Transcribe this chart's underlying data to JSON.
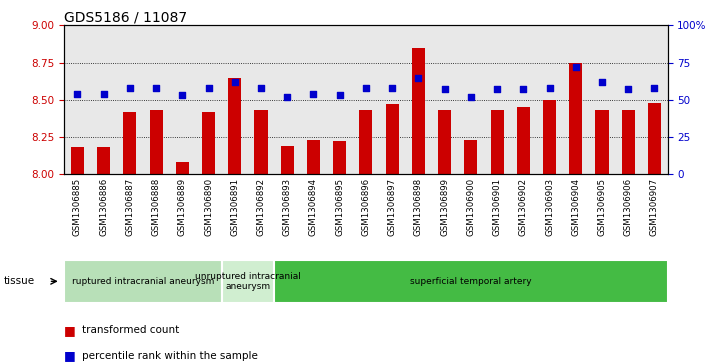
{
  "title": "GDS5186 / 11087",
  "samples": [
    "GSM1306885",
    "GSM1306886",
    "GSM1306887",
    "GSM1306888",
    "GSM1306889",
    "GSM1306890",
    "GSM1306891",
    "GSM1306892",
    "GSM1306893",
    "GSM1306894",
    "GSM1306895",
    "GSM1306896",
    "GSM1306897",
    "GSM1306898",
    "GSM1306899",
    "GSM1306900",
    "GSM1306901",
    "GSM1306902",
    "GSM1306903",
    "GSM1306904",
    "GSM1306905",
    "GSM1306906",
    "GSM1306907"
  ],
  "bar_values": [
    8.18,
    8.18,
    8.42,
    8.43,
    8.08,
    8.42,
    8.65,
    8.43,
    8.19,
    8.23,
    8.22,
    8.43,
    8.47,
    8.85,
    8.43,
    8.23,
    8.43,
    8.45,
    8.5,
    8.75,
    8.43,
    8.43,
    8.48
  ],
  "percentile_values": [
    54,
    54,
    58,
    58,
    53,
    58,
    62,
    58,
    52,
    54,
    53,
    58,
    58,
    65,
    57,
    52,
    57,
    57,
    58,
    72,
    62,
    57,
    58
  ],
  "bar_color": "#CC0000",
  "percentile_color": "#0000CC",
  "ylim_left": [
    8.0,
    9.0
  ],
  "ylim_right": [
    0,
    100
  ],
  "yticks_left": [
    8.0,
    8.25,
    8.5,
    8.75,
    9.0
  ],
  "yticks_right": [
    0,
    25,
    50,
    75,
    100
  ],
  "grid_values": [
    8.25,
    8.5,
    8.75
  ],
  "tissue_groups": [
    {
      "label": "ruptured intracranial aneurysm",
      "start": 0,
      "end": 6,
      "color": "#b8e0b8"
    },
    {
      "label": "unruptured intracranial\naneurysm",
      "start": 6,
      "end": 8,
      "color": "#d0eed0"
    },
    {
      "label": "superficial temporal artery",
      "start": 8,
      "end": 23,
      "color": "#44bb44"
    }
  ],
  "tissue_label": "tissue",
  "legend_bar_label": "transformed count",
  "legend_pct_label": "percentile rank within the sample",
  "plot_bg_color": "#e8e8e8",
  "title_fontsize": 10,
  "axis_label_color_left": "#CC0000",
  "axis_label_color_right": "#0000CC"
}
